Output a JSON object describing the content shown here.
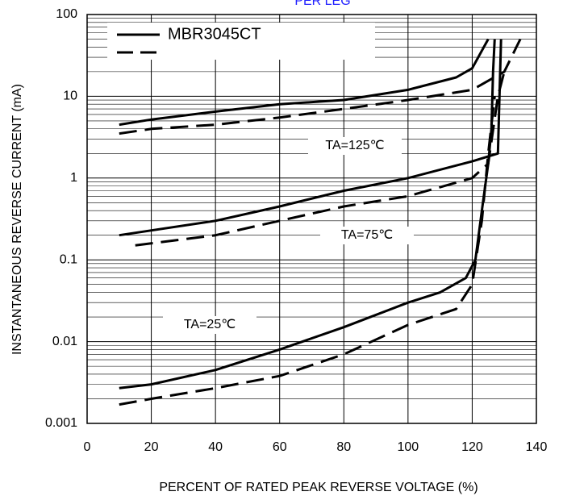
{
  "chart_data": {
    "type": "line",
    "title": "PER LEG",
    "x_label": "PERCENT OF RATED PEAK REVERSE VOLTAGE (%)",
    "y_label": "INSTANTANEOUS REVERSE CURRENT (mA)",
    "xlim": [
      0,
      140
    ],
    "xticks": [
      0,
      20,
      40,
      60,
      80,
      100,
      120,
      140
    ],
    "ylim": [
      0.001,
      100
    ],
    "yticks": [
      100,
      10,
      1,
      0.1,
      0.01,
      0.001
    ],
    "log_y": true,
    "grid": true,
    "minor_grid": true,
    "legend": "upper left",
    "annotations": [
      "TA=125℃",
      "TA=75℃",
      "TA=25℃"
    ],
    "series": [
      {
        "name": "MBR3045CT",
        "color": "#000000",
        "dash": false,
        "x": [
          10,
          20,
          40,
          60,
          80,
          100,
          115,
          120,
          125
        ],
        "values": [
          4.5,
          5.2,
          6.5,
          8,
          9,
          12,
          17,
          22,
          50
        ]
      },
      {
        "color": "#000000",
        "dash": true,
        "x": [
          10,
          20,
          40,
          60,
          80,
          100,
          120,
          130,
          135
        ],
        "values": [
          3.5,
          4,
          4.5,
          5.5,
          7,
          9,
          12,
          20,
          50
        ]
      },
      {
        "color": "#000000",
        "dash": false,
        "x": [
          10,
          40,
          60,
          80,
          100,
          120,
          128,
          129
        ],
        "values": [
          0.2,
          0.3,
          0.45,
          0.7,
          1,
          1.6,
          2,
          50
        ]
      },
      {
        "color": "#000000",
        "dash": true,
        "x": [
          15,
          40,
          60,
          80,
          100,
          120,
          125,
          128,
          130
        ],
        "values": [
          0.15,
          0.2,
          0.3,
          0.45,
          0.6,
          1,
          1.5,
          10,
          20
        ]
      },
      {
        "color": "#000000",
        "dash": false,
        "x": [
          10,
          20,
          40,
          60,
          80,
          100,
          110,
          118,
          121,
          123,
          125,
          126,
          126.5,
          127
        ],
        "values": [
          0.0027,
          0.003,
          0.0045,
          0.008,
          0.015,
          0.03,
          0.04,
          0.06,
          0.1,
          0.4,
          1.5,
          4,
          20,
          50
        ]
      },
      {
        "color": "#000000",
        "dash": true,
        "x": [
          10,
          20,
          40,
          60,
          80,
          100,
          115,
          120,
          123,
          125,
          127
        ],
        "values": [
          0.0017,
          0.002,
          0.0027,
          0.0038,
          0.007,
          0.016,
          0.025,
          0.05,
          0.3,
          2,
          10
        ]
      }
    ]
  }
}
